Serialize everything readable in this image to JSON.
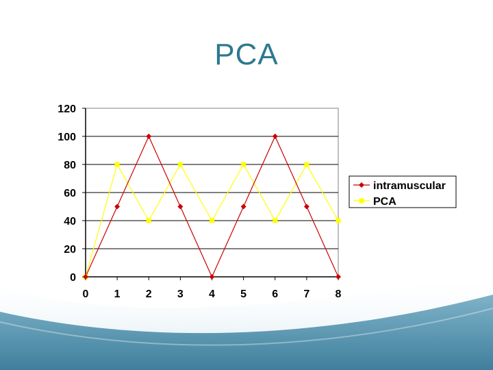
{
  "slide": {
    "title": "PCA"
  },
  "colors": {
    "title": "#2e7891",
    "intramuscular": "#cc0000",
    "pca": "#ffff00",
    "bg_wave_dark": "#4a8aa6",
    "bg_wave_light": "#cfe3ec"
  },
  "chart_data": {
    "type": "line",
    "title": "",
    "xlabel": "",
    "ylabel": "",
    "x": [
      0,
      1,
      2,
      3,
      4,
      5,
      6,
      7,
      8
    ],
    "xlim": [
      0,
      8
    ],
    "ylim": [
      0,
      120
    ],
    "yticks": [
      0,
      20,
      40,
      60,
      80,
      100,
      120
    ],
    "xticks": [
      0,
      1,
      2,
      3,
      4,
      5,
      6,
      7,
      8
    ],
    "grid": "horizontal",
    "legend_position": "right",
    "series": [
      {
        "name": "intramuscular",
        "color": "#cc0000",
        "marker": "diamond",
        "values": [
          0,
          50,
          100,
          50,
          0,
          50,
          100,
          50,
          0
        ]
      },
      {
        "name": "PCA",
        "color": "#ffff00",
        "marker": "square",
        "values": [
          0,
          80,
          40,
          80,
          40,
          80,
          40,
          80,
          40
        ]
      }
    ]
  }
}
